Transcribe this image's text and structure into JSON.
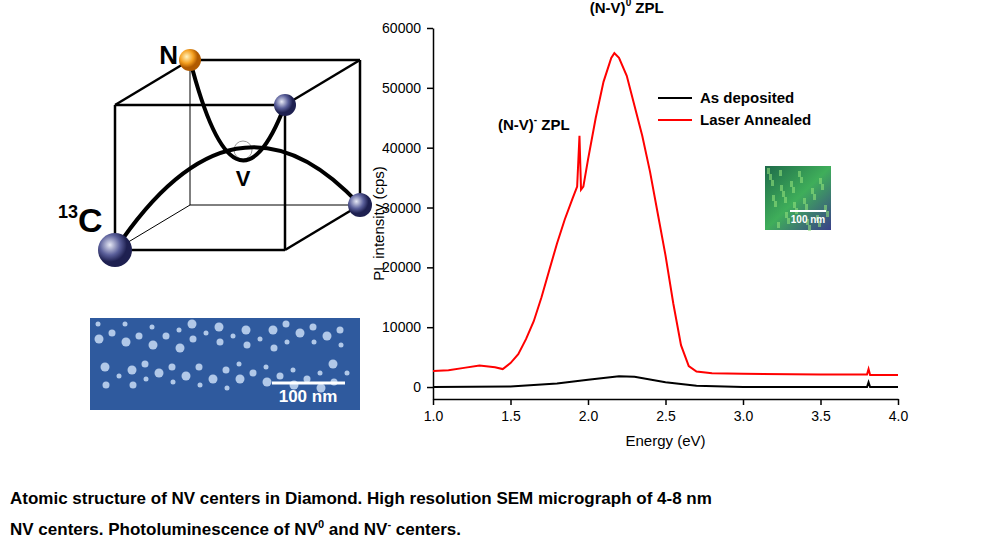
{
  "chart_data": {
    "type": "line",
    "x_label": "Energy (eV)",
    "y_label": "PL intensity (cps)",
    "xlim": [
      1.0,
      4.0
    ],
    "ylim": [
      -2000,
      60000
    ],
    "xticks": [
      {
        "value": 1.0,
        "label": "1.0"
      },
      {
        "value": 1.5,
        "label": "1.5"
      },
      {
        "value": 2.0,
        "label": "2.0"
      },
      {
        "value": 2.5,
        "label": "2.5"
      },
      {
        "value": 3.0,
        "label": "3.0"
      },
      {
        "value": 3.5,
        "label": "3.5"
      },
      {
        "value": 4.0,
        "label": "4.0"
      }
    ],
    "yticks": [
      0,
      10000,
      20000,
      30000,
      40000,
      50000,
      60000
    ],
    "legend": "upper-right",
    "grid": false,
    "series": [
      {
        "name": "As deposited",
        "color": "#000000",
        "x": [
          1.0,
          1.5,
          1.8,
          2.0,
          2.2,
          2.3,
          2.5,
          2.7,
          3.0,
          3.8,
          3.81,
          3.82,
          4.0
        ],
        "values": [
          0,
          100,
          600,
          1200,
          1800,
          1700,
          800,
          200,
          0,
          0,
          800,
          0,
          0
        ]
      },
      {
        "name": "Laser Annealed",
        "color": "#ff0000",
        "x": [
          1.0,
          1.1,
          1.2,
          1.3,
          1.4,
          1.45,
          1.5,
          1.55,
          1.6,
          1.65,
          1.7,
          1.75,
          1.8,
          1.85,
          1.9,
          1.93,
          1.945,
          1.955,
          1.97,
          2.0,
          2.05,
          2.1,
          2.15,
          2.17,
          2.2,
          2.25,
          2.3,
          2.35,
          2.4,
          2.45,
          2.5,
          2.55,
          2.6,
          2.65,
          2.7,
          2.8,
          3.0,
          3.5,
          3.8,
          3.81,
          3.82,
          4.0
        ],
        "values": [
          2700,
          2800,
          3200,
          3600,
          3300,
          3000,
          4000,
          5500,
          8000,
          11000,
          15000,
          19500,
          24000,
          28000,
          31500,
          33500,
          42000,
          33000,
          33500,
          38000,
          45000,
          51000,
          55000,
          55800,
          55000,
          52000,
          47000,
          42000,
          36000,
          29000,
          22000,
          14000,
          7000,
          3500,
          2600,
          2300,
          2200,
          2100,
          2100,
          3000,
          2000,
          2000
        ]
      }
    ],
    "annotations": [
      {
        "text": "(N-V)",
        "sup": "-",
        "suffix": " ZPL",
        "x": 1.65,
        "y": 43000
      },
      {
        "text": "(N-V)",
        "sup": "0",
        "suffix": " ZPL",
        "x": 2.25,
        "y": 62500
      }
    ]
  },
  "inset": {
    "scale_label": "100 nm"
  },
  "diagram": {
    "nitrogen": "N",
    "vacancy": "V",
    "isotope": "13",
    "element": "C"
  },
  "sem_image": {
    "scale_label": "100 nm"
  },
  "caption": {
    "line1": "Atomic structure of NV centers in Diamond. High resolution SEM micrograph of 4-8 nm",
    "line2": [
      {
        "text": "NV centers. Photoluminescence of NV"
      },
      {
        "text": "0",
        "sup": true
      },
      {
        "text": " and NV"
      },
      {
        "text": "-",
        "sup": true
      },
      {
        "text": " centers."
      }
    ]
  }
}
